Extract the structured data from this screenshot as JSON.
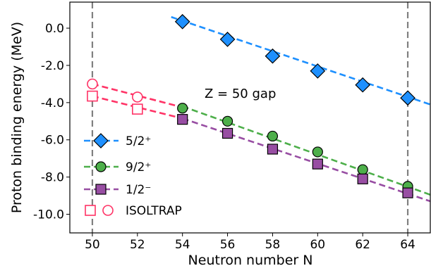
{
  "chart_data": {
    "type": "line",
    "xlabel": "Neutron number N",
    "ylabel": "Proton binding energy (MeV)",
    "xlim": [
      49,
      65
    ],
    "ylim": [
      -11,
      1.4
    ],
    "x_ticks": [
      50,
      52,
      54,
      56,
      58,
      60,
      62,
      64
    ],
    "y_ticks": [
      0.0,
      -2.0,
      -4.0,
      -6.0,
      -8.0,
      -10.0
    ],
    "y_tick_labels": [
      "0.0",
      "-2.0",
      "-4.0",
      "-6.0",
      "-8.0",
      "-10.0"
    ],
    "vertical_lines": [
      50,
      64
    ],
    "annotation": "Z = 50 gap",
    "series": [
      {
        "name": "5/2⁺",
        "marker": "diamond",
        "color": "#1e90ff",
        "points": [
          {
            "x": 54,
            "y": 0.35
          },
          {
            "x": 56,
            "y": -0.6
          },
          {
            "x": 58,
            "y": -1.5
          },
          {
            "x": 60,
            "y": -2.3
          },
          {
            "x": 62,
            "y": -3.05
          },
          {
            "x": 64,
            "y": -3.75
          }
        ],
        "fit": [
          [
            53.5,
            0.6
          ],
          [
            65,
            -4.1
          ]
        ]
      },
      {
        "name": "9/2⁺",
        "marker": "circle",
        "color": "#4daf4a",
        "points": [
          {
            "x": 54,
            "y": -4.3
          },
          {
            "x": 56,
            "y": -5.0
          },
          {
            "x": 58,
            "y": -5.8
          },
          {
            "x": 60,
            "y": -6.65
          },
          {
            "x": 62,
            "y": -7.6
          },
          {
            "x": 64,
            "y": -8.5
          }
        ],
        "fit": [
          [
            54,
            -4.2
          ],
          [
            65,
            -8.95
          ]
        ]
      },
      {
        "name": "1/2⁻",
        "marker": "square",
        "color": "#984ea3",
        "points": [
          {
            "x": 54,
            "y": -4.9
          },
          {
            "x": 56,
            "y": -5.65
          },
          {
            "x": 58,
            "y": -6.5
          },
          {
            "x": 60,
            "y": -7.3
          },
          {
            "x": 62,
            "y": -8.1
          },
          {
            "x": 64,
            "y": -8.85
          }
        ],
        "fit": [
          [
            54,
            -4.85
          ],
          [
            65,
            -9.3
          ]
        ]
      }
    ],
    "isoltrap": {
      "name": "ISOLTRAP",
      "color": "#ff3366",
      "circles": [
        {
          "x": 50,
          "y": -3.0
        },
        {
          "x": 52,
          "y": -3.7
        }
      ],
      "squares": [
        {
          "x": 50,
          "y": -3.65
        },
        {
          "x": 52,
          "y": -4.35
        }
      ],
      "fits": [
        [
          [
            50,
            -3.0
          ],
          [
            54,
            -4.25
          ]
        ],
        [
          [
            50,
            -3.65
          ],
          [
            54,
            -4.85
          ]
        ]
      ]
    },
    "legend_position": "lower-left"
  }
}
